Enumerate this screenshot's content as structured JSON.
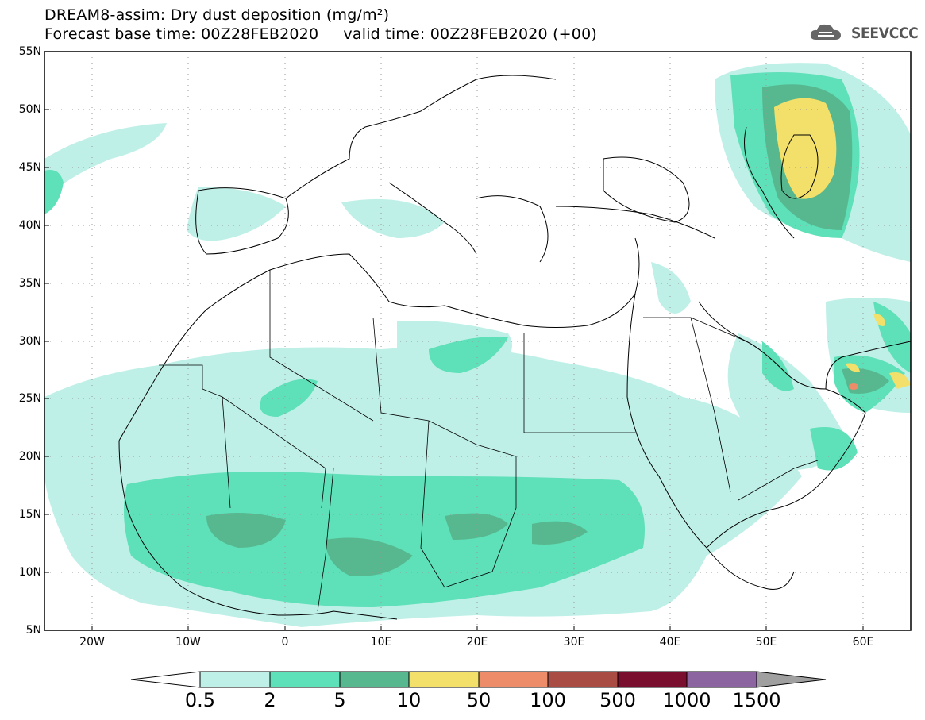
{
  "header": {
    "line1": "DREAM8-assim: Dry dust deposition (mg/m²)",
    "line2": "Forecast base time: 00Z28FEB2020     valid time: 00Z28FEB2020 (+00)"
  },
  "logo": {
    "text": "SEEVCCC",
    "icon": "cloud-icon"
  },
  "axes": {
    "lat_labels": [
      "55N",
      "50N",
      "45N",
      "40N",
      "35N",
      "30N",
      "25N",
      "20N",
      "15N",
      "10N",
      "5N"
    ],
    "lon_labels": [
      "20W",
      "10W",
      "0",
      "10E",
      "20E",
      "30E",
      "40E",
      "50E",
      "60E"
    ]
  },
  "colorbar": {
    "labels": [
      "0.5",
      "2",
      "5",
      "10",
      "50",
      "100",
      "500",
      "1000",
      "1500"
    ],
    "colors": [
      "#bff0e8",
      "#5ee0b8",
      "#57b890",
      "#f2e06a",
      "#ec8c68",
      "#a84c44",
      "#7a0e2e",
      "#8c64a0",
      "#a0a0a0"
    ],
    "under_color": "#ffffff"
  }
}
